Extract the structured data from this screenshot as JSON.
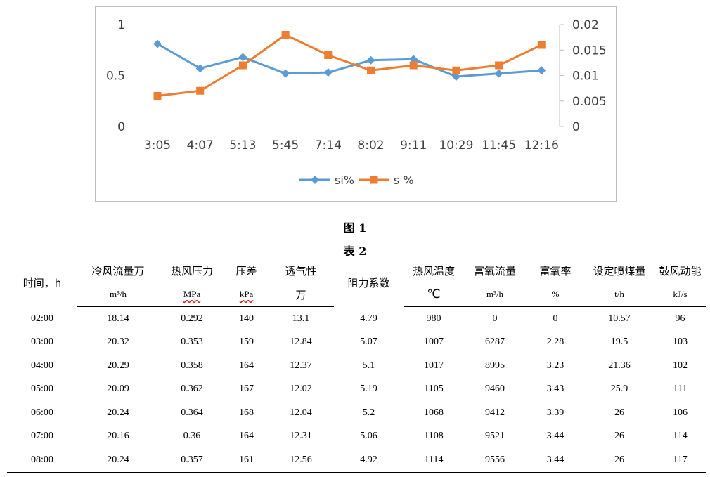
{
  "chart_data": {
    "type": "line",
    "categories": [
      "3:05",
      "4:07",
      "5:13",
      "5:45",
      "7:14",
      "8:02",
      "9:11",
      "10:29",
      "11:45",
      "12:16"
    ],
    "series": [
      {
        "name": "si%",
        "axis": "left",
        "color": "#5b9bd5",
        "marker": "diamond",
        "values": [
          0.81,
          0.57,
          0.68,
          0.52,
          0.53,
          0.65,
          0.66,
          0.49,
          0.52,
          0.55
        ]
      },
      {
        "name": "s %",
        "axis": "right",
        "color": "#ed7d31",
        "marker": "square",
        "values": [
          0.006,
          0.007,
          0.012,
          0.018,
          0.014,
          0.011,
          0.012,
          0.011,
          0.012,
          0.016
        ]
      }
    ],
    "y_left": {
      "min": 0,
      "max": 1,
      "ticks": [
        "0",
        "0.5",
        "1"
      ],
      "tick_values": [
        0,
        0.5,
        1
      ]
    },
    "y_right": {
      "min": 0,
      "max": 0.02,
      "ticks": [
        "0",
        "0.005",
        "0.01",
        "0.015",
        "0.02"
      ],
      "tick_values": [
        0,
        0.005,
        0.01,
        0.015,
        0.02
      ]
    },
    "grid": false,
    "legend": "bottom"
  },
  "figure_caption": "图 1",
  "table_caption": "表 2",
  "table": {
    "headers": [
      {
        "label": "时间，h",
        "unit": ""
      },
      {
        "label": "冷风流量万",
        "unit": "m³/h"
      },
      {
        "label": "热风压力",
        "unit": "MPa"
      },
      {
        "label": "压差",
        "unit": "kPa"
      },
      {
        "label": "透气性",
        "unit": "万"
      },
      {
        "label": "阻力系数",
        "unit": ""
      },
      {
        "label": "热风温度",
        "unit": "℃"
      },
      {
        "label": "富氧流量",
        "unit": "m³/h"
      },
      {
        "label": "富氧率",
        "unit": "%"
      },
      {
        "label": "设定喷煤量",
        "unit": "t/h"
      },
      {
        "label": "鼓风动能",
        "unit": "kJ/s"
      }
    ],
    "rows": [
      [
        "02:00",
        "18.14",
        "0.292",
        "140",
        "13.1",
        "4.79",
        "980",
        "0",
        "0",
        "10.57",
        "96"
      ],
      [
        "03:00",
        "20.32",
        "0.353",
        "159",
        "12.84",
        "5.07",
        "1007",
        "6287",
        "2.28",
        "19.5",
        "103"
      ],
      [
        "04:00",
        "20.29",
        "0.358",
        "164",
        "12.37",
        "5.1",
        "1017",
        "8995",
        "3.23",
        "21.36",
        "102"
      ],
      [
        "05:00",
        "20.09",
        "0.362",
        "167",
        "12.02",
        "5.19",
        "1105",
        "9460",
        "3.43",
        "25.9",
        "111"
      ],
      [
        "06:00",
        "20.24",
        "0.364",
        "168",
        "12.04",
        "5.2",
        "1068",
        "9412",
        "3.39",
        "26",
        "106"
      ],
      [
        "07:00",
        "20.16",
        "0.36",
        "164",
        "12.31",
        "5.06",
        "1108",
        "9521",
        "3.44",
        "26",
        "114"
      ],
      [
        "08:00",
        "20.24",
        "0.357",
        "161",
        "12.56",
        "4.92",
        "1114",
        "9556",
        "3.44",
        "26",
        "117"
      ]
    ]
  }
}
